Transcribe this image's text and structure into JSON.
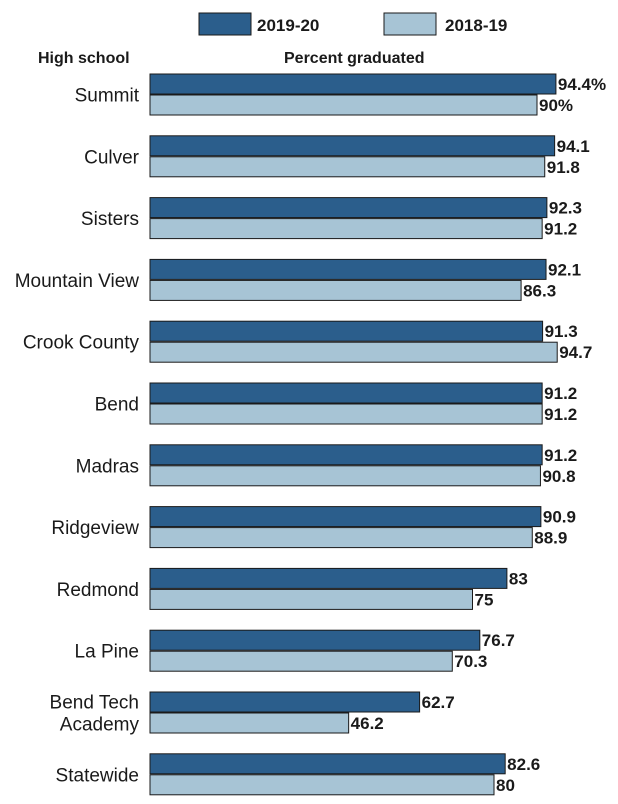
{
  "chart_data": {
    "type": "bar",
    "orientation": "horizontal",
    "header": {
      "category_column": "High school",
      "value_column": "Percent graduated"
    },
    "legend_position": "top",
    "colors": {
      "2019-20": "#2b5e8c",
      "2018-19": "#a7c4d5"
    },
    "categories": [
      [
        "Summit"
      ],
      [
        "Culver"
      ],
      [
        "Sisters"
      ],
      [
        "Mountain View"
      ],
      [
        "Crook County"
      ],
      [
        "Bend"
      ],
      [
        "Madras"
      ],
      [
        "Ridgeview"
      ],
      [
        "Redmond"
      ],
      [
        "La Pine"
      ],
      [
        "Bend Tech",
        "Academy"
      ],
      [
        "Statewide"
      ]
    ],
    "series": [
      {
        "name": "2019-20",
        "values": [
          94.4,
          94.1,
          92.3,
          92.1,
          91.3,
          91.2,
          91.2,
          90.9,
          83,
          76.7,
          62.7,
          82.6
        ],
        "labels": [
          "94.4%",
          "94.1",
          "92.3",
          "92.1",
          "91.3",
          "91.2",
          "91.2",
          "90.9",
          "83",
          "76.7",
          "62.7",
          "82.6"
        ]
      },
      {
        "name": "2018-19",
        "values": [
          90,
          91.8,
          91.2,
          86.3,
          94.7,
          91.2,
          90.8,
          88.9,
          75,
          70.3,
          46.2,
          80
        ],
        "labels": [
          "90%",
          "91.8",
          "91.2",
          "86.3",
          "94.7",
          "91.2",
          "90.8",
          "88.9",
          "75",
          "70.3",
          "46.2",
          "80"
        ]
      }
    ]
  }
}
